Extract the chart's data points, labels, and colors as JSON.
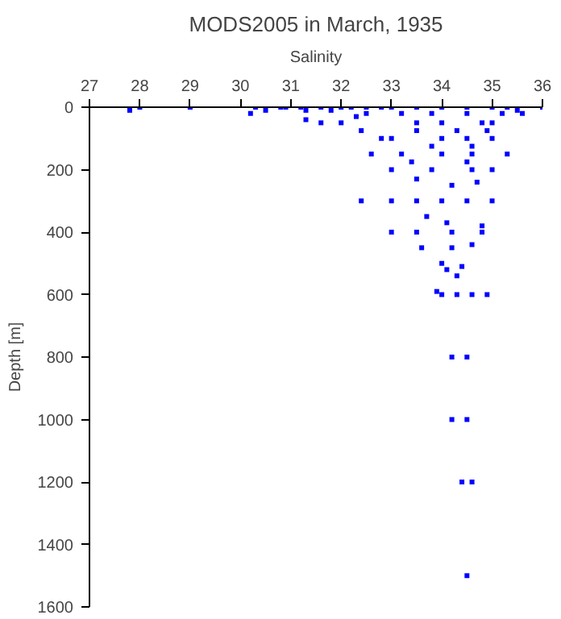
{
  "chart_data": {
    "type": "scatter",
    "title": "MODS2005 in March, 1935",
    "xlabel": "Salinity",
    "ylabel": "Depth [m]",
    "xlim": [
      27,
      36
    ],
    "xticks": [
      27,
      28,
      29,
      30,
      31,
      32,
      33,
      34,
      35,
      36
    ],
    "ylim": [
      1600,
      0
    ],
    "yticks": [
      0,
      200,
      400,
      600,
      800,
      1000,
      1200,
      1400,
      1600
    ],
    "grid": false,
    "marker": "square",
    "series": [
      {
        "color": "#0000ff",
        "x": [
          27.8,
          28.0,
          29.0,
          30.3,
          30.2,
          30.5,
          30.8,
          30.9,
          31.2,
          31.3,
          31.3,
          31.6,
          31.8,
          32.0,
          32.2,
          32.5,
          32.8,
          33.0,
          33.5,
          34.0,
          34.5,
          35.0,
          35.3,
          35.5,
          36.0,
          35.6,
          31.6,
          32.0,
          32.3,
          32.5,
          33.2,
          33.8,
          34.5,
          35.2,
          32.4,
          32.8,
          33.0,
          32.6,
          33.2,
          34.0,
          34.6,
          35.3,
          33.0,
          33.8,
          34.6,
          35.0,
          33.5,
          34.2,
          34.7,
          32.4,
          33.0,
          33.5,
          34.0,
          34.5,
          35.0,
          33.7,
          34.1,
          34.8,
          33.0,
          33.5,
          34.2,
          34.8,
          33.6,
          34.2,
          34.6,
          34.0,
          34.4,
          34.1,
          34.3,
          33.9,
          34.0,
          34.3,
          34.6,
          34.9,
          34.2,
          34.5,
          34.2,
          34.5,
          34.4,
          34.6,
          34.5,
          34.0,
          34.5,
          35.0,
          33.5,
          34.0,
          34.8,
          35.0,
          33.5,
          34.3,
          34.9,
          33.8,
          34.6,
          33.4,
          34.5
        ],
        "values": [
          10,
          0,
          0,
          0,
          20,
          10,
          0,
          0,
          0,
          10,
          40,
          0,
          10,
          0,
          0,
          0,
          0,
          0,
          0,
          0,
          0,
          0,
          0,
          10,
          0,
          20,
          50,
          50,
          30,
          20,
          20,
          20,
          20,
          20,
          75,
          100,
          100,
          150,
          150,
          150,
          150,
          150,
          200,
          200,
          200,
          200,
          230,
          250,
          240,
          300,
          300,
          300,
          300,
          300,
          300,
          350,
          370,
          380,
          400,
          400,
          400,
          400,
          450,
          450,
          440,
          500,
          510,
          520,
          540,
          590,
          600,
          600,
          600,
          600,
          800,
          800,
          1000,
          1000,
          1200,
          1200,
          1500,
          100,
          100,
          100,
          50,
          50,
          50,
          50,
          75,
          75,
          75,
          125,
          125,
          175,
          175
        ]
      }
    ]
  }
}
